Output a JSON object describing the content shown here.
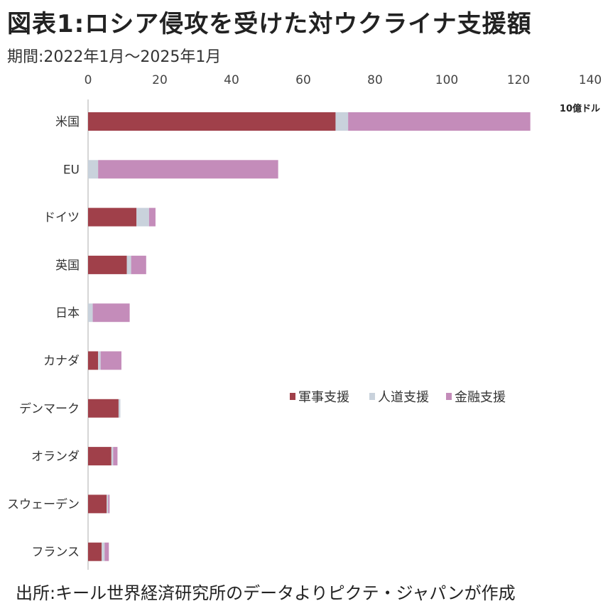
{
  "title": "図表1:ロシア侵攻を受けた対ウクライナ支援額",
  "subtitle": "期間:2022年1月〜2025年1月",
  "source": "出所:キール世界経済研究所のデータよりピクテ・ジャパンが作成",
  "chart_data": {
    "type": "bar",
    "orientation": "horizontal",
    "stacked": true,
    "unit_label": "10億ドル",
    "xlim": [
      0,
      140
    ],
    "x_ticks": [
      0,
      20,
      40,
      60,
      80,
      100,
      120,
      140
    ],
    "categories": [
      "米国",
      "EU",
      "ドイツ",
      "英国",
      "日本",
      "カナダ",
      "デンマーク",
      "オランダ",
      "スウェーデン",
      "フランス"
    ],
    "series": [
      {
        "name": "軍事支援",
        "color": "#A0404A",
        "values": [
          69.0,
          0.0,
          13.5,
          10.8,
          0.0,
          2.8,
          8.5,
          6.5,
          5.2,
          3.8
        ]
      },
      {
        "name": "人道支援",
        "color": "#C9D2DC",
        "values": [
          3.5,
          2.8,
          3.5,
          1.2,
          1.3,
          0.7,
          0.5,
          0.5,
          0.4,
          0.8
        ]
      },
      {
        "name": "金融支援",
        "color": "#C48CBA",
        "values": [
          50.8,
          50.2,
          1.8,
          4.2,
          10.3,
          5.8,
          0.0,
          1.2,
          0.4,
          1.2
        ]
      }
    ],
    "legend_position": "center-right",
    "grid": false
  }
}
